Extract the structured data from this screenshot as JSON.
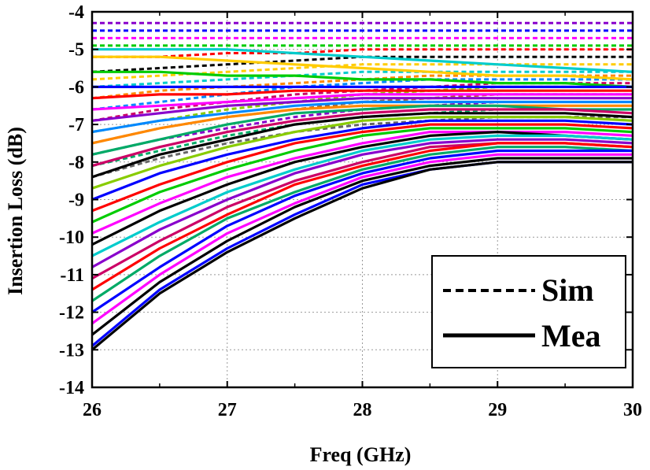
{
  "chart_data": {
    "type": "line",
    "title": "",
    "xlabel": "Freq (GHz)",
    "ylabel": "Insertion Loss (dB)",
    "xlim": [
      26,
      30
    ],
    "ylim": [
      -14,
      -4
    ],
    "xticks": [
      26,
      27,
      28,
      29,
      30
    ],
    "yticks": [
      -14,
      -13,
      -12,
      -11,
      -10,
      -9,
      -8,
      -7,
      -6,
      -5,
      -4
    ],
    "xtick_labels": [
      "26",
      "27",
      "28",
      "29",
      "30"
    ],
    "ytick_labels": [
      "-14",
      "-13",
      "-12",
      "-11",
      "-10",
      "-9",
      "-8",
      "-7",
      "-6",
      "-5",
      "-4"
    ],
    "grid": true,
    "grid_style": "dotted",
    "legend": {
      "placement": "bottom-right",
      "entries": [
        {
          "label": "Sim",
          "style": "dashed",
          "color": "#000000"
        },
        {
          "label": "Mea",
          "style": "solid",
          "color": "#000000"
        }
      ]
    },
    "palette": [
      "#ff0000",
      "#0000ff",
      "#00cc00",
      "#ff00ff",
      "#00cccc",
      "#ffcc00",
      "#000000",
      "#8800cc",
      "#ff8800",
      "#00aa66",
      "#cc0066",
      "#666666",
      "#0088ff",
      "#88cc00",
      "#aa6633",
      "#cccccc"
    ],
    "x": [
      26.0,
      26.5,
      27.0,
      27.5,
      28.0,
      28.5,
      29.0,
      29.5,
      30.0
    ],
    "series": [
      {
        "style": "dashed",
        "color": "#8800cc",
        "values": [
          -4.3,
          -4.3,
          -4.3,
          -4.3,
          -4.3,
          -4.3,
          -4.3,
          -4.3,
          -4.3
        ]
      },
      {
        "style": "dashed",
        "color": "#0000ff",
        "values": [
          -4.5,
          -4.5,
          -4.5,
          -4.5,
          -4.5,
          -4.5,
          -4.5,
          -4.5,
          -4.5
        ]
      },
      {
        "style": "dashed",
        "color": "#ff00ff",
        "values": [
          -4.7,
          -4.7,
          -4.7,
          -4.7,
          -4.7,
          -4.7,
          -4.7,
          -4.7,
          -4.7
        ]
      },
      {
        "style": "dashed",
        "color": "#00cc00",
        "values": [
          -4.9,
          -4.9,
          -4.9,
          -4.9,
          -4.9,
          -4.9,
          -4.9,
          -4.9,
          -4.9
        ]
      },
      {
        "style": "dashed",
        "color": "#ff0000",
        "values": [
          -5.2,
          -5.2,
          -5.1,
          -5.1,
          -5.0,
          -5.0,
          -5.0,
          -5.0,
          -5.0
        ]
      },
      {
        "style": "dashed",
        "color": "#000000",
        "values": [
          -5.6,
          -5.5,
          -5.4,
          -5.3,
          -5.2,
          -5.2,
          -5.2,
          -5.2,
          -5.2
        ]
      },
      {
        "style": "dashed",
        "color": "#ffcc00",
        "values": [
          -5.8,
          -5.7,
          -5.6,
          -5.5,
          -5.4,
          -5.4,
          -5.4,
          -5.4,
          -5.4
        ]
      },
      {
        "style": "dashed",
        "color": "#00cccc",
        "values": [
          -6.0,
          -5.9,
          -5.8,
          -5.7,
          -5.6,
          -5.6,
          -5.6,
          -5.6,
          -5.6
        ]
      },
      {
        "style": "dashed",
        "color": "#ff8800",
        "values": [
          -6.3,
          -6.1,
          -6.0,
          -5.9,
          -5.8,
          -5.7,
          -5.7,
          -5.7,
          -5.7
        ]
      },
      {
        "style": "dashed",
        "color": "#0088ff",
        "values": [
          -6.6,
          -6.4,
          -6.2,
          -6.0,
          -5.9,
          -5.8,
          -5.8,
          -5.8,
          -5.8
        ]
      },
      {
        "style": "dashed",
        "color": "#cc0066",
        "values": [
          -6.9,
          -6.6,
          -6.4,
          -6.2,
          -6.1,
          -6.0,
          -5.9,
          -5.9,
          -5.9
        ]
      },
      {
        "style": "dashed",
        "color": "#88cc00",
        "values": [
          -7.2,
          -6.9,
          -6.6,
          -6.4,
          -6.2,
          -6.1,
          -6.0,
          -6.0,
          -6.0
        ]
      },
      {
        "style": "dashed",
        "color": "#aa6633",
        "values": [
          -7.5,
          -7.1,
          -6.8,
          -6.6,
          -6.4,
          -6.3,
          -6.2,
          -6.2,
          -6.2
        ]
      },
      {
        "style": "dashed",
        "color": "#8800cc",
        "values": [
          -7.8,
          -7.4,
          -7.1,
          -6.8,
          -6.6,
          -6.5,
          -6.4,
          -6.4,
          -6.4
        ]
      },
      {
        "style": "dashed",
        "color": "#00aa66",
        "values": [
          -8.1,
          -7.7,
          -7.3,
          -7.0,
          -6.8,
          -6.7,
          -6.6,
          -6.6,
          -6.6
        ]
      },
      {
        "style": "dashed",
        "color": "#666666",
        "values": [
          -8.4,
          -7.9,
          -7.5,
          -7.2,
          -7.0,
          -6.9,
          -6.8,
          -6.8,
          -6.8
        ]
      },
      {
        "style": "solid",
        "color": "#00cccc",
        "values": [
          -5.0,
          -5.0,
          -5.0,
          -5.1,
          -5.2,
          -5.3,
          -5.4,
          -5.5,
          -5.6
        ]
      },
      {
        "style": "solid",
        "color": "#ffcc00",
        "values": [
          -5.2,
          -5.2,
          -5.3,
          -5.4,
          -5.5,
          -5.6,
          -5.7,
          -5.7,
          -5.8
        ]
      },
      {
        "style": "solid",
        "color": "#00cc00",
        "values": [
          -5.6,
          -5.6,
          -5.7,
          -5.7,
          -5.8,
          -5.8,
          -5.9,
          -5.9,
          -6.0
        ]
      },
      {
        "style": "solid",
        "color": "#0000ff",
        "values": [
          -6.0,
          -6.0,
          -6.0,
          -6.0,
          -6.0,
          -6.0,
          -6.0,
          -6.0,
          -6.0
        ]
      },
      {
        "style": "solid",
        "color": "#ff0000",
        "values": [
          -6.3,
          -6.2,
          -6.2,
          -6.1,
          -6.1,
          -6.1,
          -6.1,
          -6.1,
          -6.1
        ]
      },
      {
        "style": "solid",
        "color": "#ff00ff",
        "values": [
          -6.6,
          -6.5,
          -6.4,
          -6.3,
          -6.2,
          -6.2,
          -6.2,
          -6.2,
          -6.2
        ]
      },
      {
        "style": "solid",
        "color": "#8800cc",
        "values": [
          -6.9,
          -6.7,
          -6.5,
          -6.4,
          -6.3,
          -6.3,
          -6.3,
          -6.3,
          -6.3
        ]
      },
      {
        "style": "solid",
        "color": "#0088ff",
        "values": [
          -7.2,
          -6.9,
          -6.7,
          -6.5,
          -6.4,
          -6.4,
          -6.4,
          -6.4,
          -6.4
        ]
      },
      {
        "style": "solid",
        "color": "#ff8800",
        "values": [
          -7.5,
          -7.1,
          -6.8,
          -6.6,
          -6.5,
          -6.5,
          -6.5,
          -6.5,
          -6.5
        ]
      },
      {
        "style": "solid",
        "color": "#00aa66",
        "values": [
          -7.8,
          -7.4,
          -7.0,
          -6.7,
          -6.6,
          -6.5,
          -6.5,
          -6.6,
          -6.6
        ]
      },
      {
        "style": "solid",
        "color": "#cc0066",
        "values": [
          -8.1,
          -7.6,
          -7.2,
          -6.9,
          -6.7,
          -6.6,
          -6.6,
          -6.6,
          -6.7
        ]
      },
      {
        "style": "solid",
        "color": "#000000",
        "values": [
          -8.4,
          -7.8,
          -7.4,
          -7.0,
          -6.8,
          -6.7,
          -6.7,
          -6.7,
          -6.8
        ]
      },
      {
        "style": "solid",
        "color": "#88cc00",
        "values": [
          -8.7,
          -8.1,
          -7.6,
          -7.2,
          -6.9,
          -6.8,
          -6.8,
          -6.8,
          -6.9
        ]
      },
      {
        "style": "solid",
        "color": "#0000ff",
        "values": [
          -9.0,
          -8.3,
          -7.8,
          -7.4,
          -7.1,
          -6.9,
          -6.9,
          -6.9,
          -7.0
        ]
      },
      {
        "style": "solid",
        "color": "#ff0000",
        "values": [
          -9.3,
          -8.6,
          -8.0,
          -7.5,
          -7.2,
          -7.0,
          -7.0,
          -7.0,
          -7.1
        ]
      },
      {
        "style": "solid",
        "color": "#00cc00",
        "values": [
          -9.6,
          -8.8,
          -8.2,
          -7.7,
          -7.3,
          -7.1,
          -7.1,
          -7.1,
          -7.2
        ]
      },
      {
        "style": "solid",
        "color": "#ff00ff",
        "values": [
          -9.9,
          -9.1,
          -8.4,
          -7.9,
          -7.5,
          -7.2,
          -7.2,
          -7.2,
          -7.3
        ]
      },
      {
        "style": "solid",
        "color": "#000000",
        "values": [
          -10.2,
          -9.3,
          -8.6,
          -8.0,
          -7.6,
          -7.3,
          -7.2,
          -7.3,
          -7.4
        ]
      },
      {
        "style": "solid",
        "color": "#00cccc",
        "values": [
          -10.5,
          -9.6,
          -8.8,
          -8.2,
          -7.7,
          -7.4,
          -7.3,
          -7.3,
          -7.4
        ]
      },
      {
        "style": "solid",
        "color": "#8800cc",
        "values": [
          -10.8,
          -9.8,
          -9.0,
          -8.3,
          -7.8,
          -7.5,
          -7.4,
          -7.4,
          -7.5
        ]
      },
      {
        "style": "solid",
        "color": "#cc0066",
        "values": [
          -11.1,
          -10.1,
          -9.2,
          -8.5,
          -8.0,
          -7.6,
          -7.5,
          -7.5,
          -7.6
        ]
      },
      {
        "style": "solid",
        "color": "#ff0000",
        "values": [
          -11.4,
          -10.3,
          -9.4,
          -8.6,
          -8.1,
          -7.7,
          -7.5,
          -7.5,
          -7.6
        ]
      },
      {
        "style": "solid",
        "color": "#00aa66",
        "values": [
          -11.7,
          -10.5,
          -9.5,
          -8.8,
          -8.2,
          -7.8,
          -7.6,
          -7.6,
          -7.7
        ]
      },
      {
        "style": "solid",
        "color": "#0000ff",
        "values": [
          -12.0,
          -10.8,
          -9.7,
          -8.9,
          -8.3,
          -7.9,
          -7.7,
          -7.7,
          -7.7
        ]
      },
      {
        "style": "solid",
        "color": "#ff00ff",
        "values": [
          -12.3,
          -11.0,
          -9.9,
          -9.1,
          -8.4,
          -8.0,
          -7.8,
          -7.8,
          -7.8
        ]
      },
      {
        "style": "solid",
        "color": "#000000",
        "values": [
          -12.6,
          -11.2,
          -10.1,
          -9.2,
          -8.5,
          -8.1,
          -7.9,
          -7.9,
          -7.9
        ]
      },
      {
        "style": "solid",
        "color": "#0000ff",
        "values": [
          -12.9,
          -11.4,
          -10.3,
          -9.4,
          -8.6,
          -8.2,
          -8.0,
          -8.0,
          -8.0
        ]
      },
      {
        "style": "solid",
        "color": "#000000",
        "values": [
          -13.0,
          -11.5,
          -10.4,
          -9.5,
          -8.7,
          -8.2,
          -8.0,
          -8.0,
          -8.0
        ]
      }
    ]
  }
}
